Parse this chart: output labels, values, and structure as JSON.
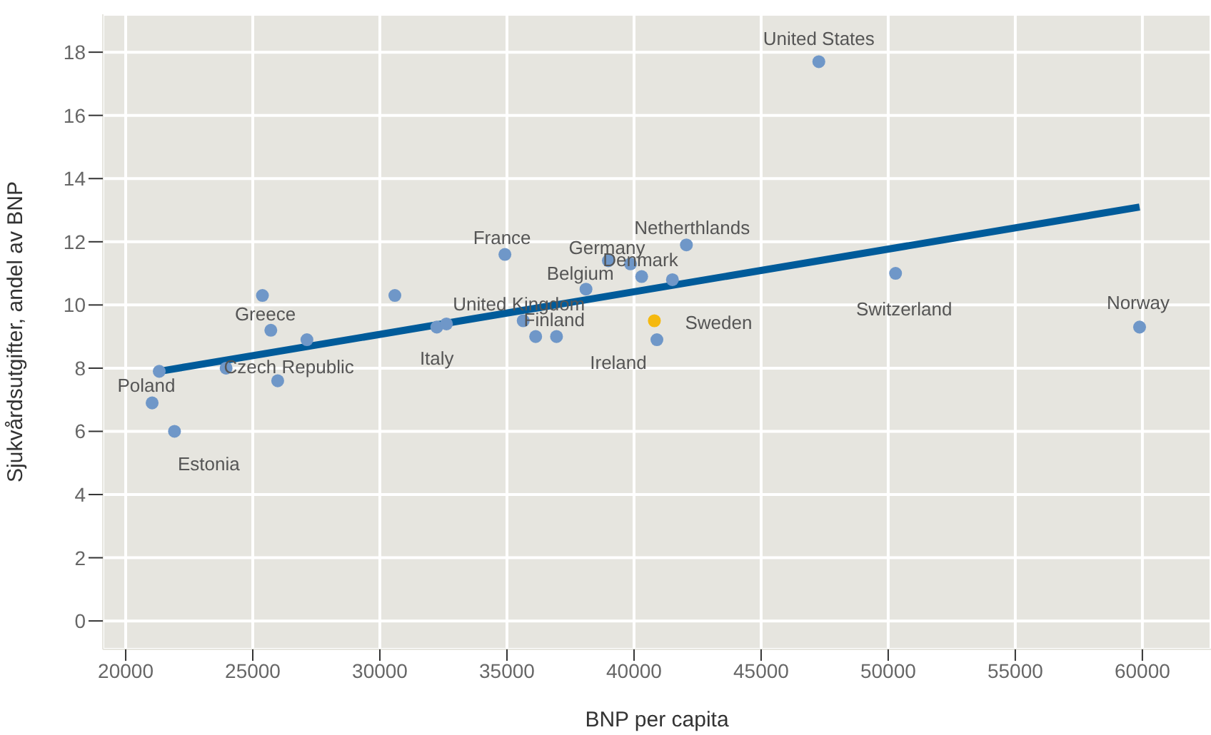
{
  "chart_data": {
    "type": "scatter",
    "xlabel": "BNP per capita",
    "ylabel": "Sjukvårdsutgifter, andel av BNP",
    "xlim": [
      19100,
      62700
    ],
    "ylim": [
      -0.9,
      19.2
    ],
    "xticks": [
      20000,
      25000,
      30000,
      35000,
      40000,
      45000,
      50000,
      55000,
      60000
    ],
    "yticks": [
      0,
      2,
      4,
      6,
      8,
      10,
      12,
      14,
      16,
      18
    ],
    "grid": true,
    "legend": false,
    "marker": "circle",
    "series": [
      {
        "type": "scatter",
        "color": "#6f97c8",
        "x": [
          21040,
          21320,
          21920,
          23950,
          25380,
          25710,
          25980,
          27130,
          30590,
          32240,
          32620,
          34920,
          35640,
          36130,
          36950,
          38110,
          38990,
          39860,
          40300,
          41510,
          42060,
          40900,
          47270,
          50290,
          59890
        ],
        "values": [
          6.9,
          7.9,
          6.0,
          8.0,
          10.3,
          9.2,
          7.6,
          8.9,
          10.3,
          9.3,
          9.4,
          11.6,
          9.5,
          9.0,
          9.0,
          10.5,
          11.4,
          11.3,
          10.9,
          10.8,
          11.9,
          8.9,
          17.7,
          11.0,
          9.3
        ]
      },
      {
        "type": "scatter",
        "color": "#f5b90f",
        "x": [
          40800
        ],
        "values": [
          9.5
        ]
      },
      {
        "type": "line",
        "color": "#005b9a",
        "x": [
          21320,
          59890
        ],
        "values": [
          7.9,
          13.1
        ],
        "marker": "none",
        "line_style": "solid"
      }
    ],
    "annotations": [
      {
        "text": "United States",
        "x": 47270,
        "y": 17.7
      },
      {
        "text": "Netherthlands",
        "x": 42060,
        "y": 11.9
      },
      {
        "text": "France",
        "x": 34920,
        "y": 11.6
      },
      {
        "text": "Germany",
        "x": 38990,
        "y": 11.4
      },
      {
        "text": "Denmark",
        "x": 39860,
        "y": 11.3
      },
      {
        "text": "Belgium",
        "x": 38110,
        "y": 10.5
      },
      {
        "text": "United Kingdom",
        "x": 35640,
        "y": 9.5
      },
      {
        "text": "Finland",
        "x": 36130,
        "y": 9.0
      },
      {
        "text": "Sweden",
        "x": 40800,
        "y": 9.5
      },
      {
        "text": "Ireland",
        "x": 40900,
        "y": 8.9
      },
      {
        "text": "Switzerland",
        "x": 50290,
        "y": 11.0
      },
      {
        "text": "Norway",
        "x": 59890,
        "y": 9.3
      },
      {
        "text": "Greece",
        "x": 25380,
        "y": 10.3
      },
      {
        "text": "Czech Republic",
        "x": 23950,
        "y": 8.0
      },
      {
        "text": "Italy",
        "x": 32240,
        "y": 9.3
      },
      {
        "text": "Poland",
        "x": 21320,
        "y": 7.9
      },
      {
        "text": "Estonia",
        "x": 21920,
        "y": 6.0
      }
    ]
  }
}
